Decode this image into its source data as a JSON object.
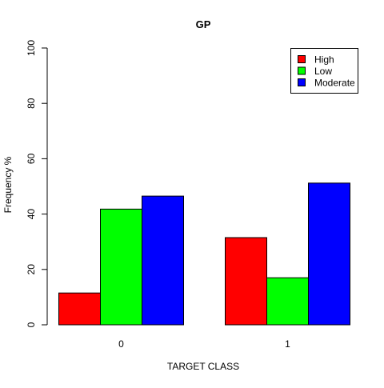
{
  "chart_data": {
    "type": "bar",
    "title": "GP",
    "xlabel": "TARGET CLASS",
    "ylabel": "Frequency %",
    "categories": [
      "0",
      "1"
    ],
    "series": [
      {
        "name": "High",
        "color": "#ff0000",
        "values": [
          11.5,
          31.5
        ]
      },
      {
        "name": "Low",
        "color": "#00ff00",
        "values": [
          41.8,
          17.0
        ]
      },
      {
        "name": "Moderate",
        "color": "#0000ff",
        "values": [
          46.5,
          51.2
        ]
      }
    ],
    "ylim": [
      0,
      100
    ],
    "yticks": [
      "0",
      "20",
      "40",
      "60",
      "80",
      "100"
    ],
    "grid": false,
    "legend_position": "top-right"
  }
}
